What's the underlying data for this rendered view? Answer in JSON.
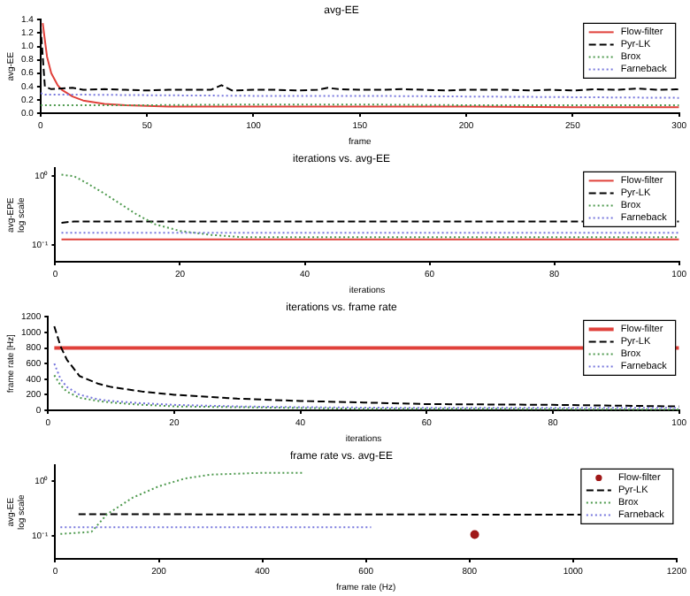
{
  "chart_data": [
    {
      "type": "line",
      "title": "avg-EE",
      "xlabel": "frame",
      "ylabel": "avg-EE",
      "xlim": [
        0,
        300
      ],
      "xticks": [
        0,
        50,
        100,
        150,
        200,
        250,
        300
      ],
      "ylim": [
        0,
        1.4
      ],
      "yticks": [
        {
          "value": 0,
          "label": "0.0"
        },
        {
          "value": 0.2,
          "label": "0.2"
        },
        {
          "value": 0.4,
          "label": "0.4"
        },
        {
          "value": 0.6,
          "label": "0.6"
        },
        {
          "value": 0.8,
          "label": "0.8"
        },
        {
          "value": 1,
          "label": "1.0"
        },
        {
          "value": 1.2,
          "label": "1.2"
        },
        {
          "value": 1.4,
          "label": "1.4"
        }
      ],
      "grid": false,
      "legend": "top right",
      "series": [
        {
          "name": "Flow-filter",
          "color": "#e0403a",
          "line_style": "solid",
          "x": [
            1,
            2,
            3,
            5,
            8,
            10,
            15,
            20,
            30,
            40,
            60,
            100,
            150,
            200,
            250,
            300
          ],
          "values": [
            1.35,
            1.1,
            0.85,
            0.6,
            0.42,
            0.35,
            0.25,
            0.19,
            0.14,
            0.12,
            0.1,
            0.1,
            0.1,
            0.1,
            0.09,
            0.09
          ]
        },
        {
          "name": "Pyr-LK",
          "color": "#000000",
          "line_style": "dashed",
          "x": [
            0,
            2,
            5,
            10,
            15,
            20,
            30,
            40,
            50,
            60,
            70,
            80,
            85,
            90,
            100,
            110,
            120,
            130,
            135,
            140,
            150,
            160,
            170,
            180,
            190,
            200,
            210,
            220,
            230,
            240,
            250,
            260,
            270,
            280,
            290,
            300
          ],
          "values": [
            1.3,
            0.4,
            0.36,
            0.37,
            0.38,
            0.35,
            0.36,
            0.35,
            0.34,
            0.35,
            0.35,
            0.35,
            0.42,
            0.34,
            0.35,
            0.35,
            0.34,
            0.35,
            0.38,
            0.36,
            0.35,
            0.35,
            0.36,
            0.35,
            0.34,
            0.35,
            0.35,
            0.35,
            0.34,
            0.35,
            0.34,
            0.36,
            0.35,
            0.37,
            0.35,
            0.36
          ]
        },
        {
          "name": "Brox",
          "color": "#4f9a4f",
          "line_style": "dotted",
          "x": [
            0,
            1,
            5,
            50,
            100,
            150,
            200,
            250,
            300
          ],
          "values": [
            0.12,
            0.12,
            0.12,
            0.12,
            0.13,
            0.13,
            0.12,
            0.12,
            0.12
          ]
        },
        {
          "name": "Farneback",
          "color": "#7777dd",
          "line_style": "dotted",
          "x": [
            0,
            2,
            10,
            50,
            100,
            150,
            200,
            250,
            300
          ],
          "values": [
            0.3,
            0.28,
            0.28,
            0.27,
            0.26,
            0.26,
            0.25,
            0.24,
            0.23
          ]
        }
      ]
    },
    {
      "type": "line",
      "title": "iterations vs. avg-EE",
      "xlabel": "iterations",
      "ylabel": "avg-EPE\nlog scale",
      "log": "y",
      "xlim": [
        0,
        100
      ],
      "xticks": [
        0,
        20,
        40,
        60,
        80,
        100
      ],
      "ylim": [
        0.057,
        1.3
      ],
      "yticks": [
        {
          "value": 0.1,
          "label": "10⁻¹"
        },
        {
          "value": 1,
          "label": "10⁰"
        }
      ],
      "grid": false,
      "legend": "top right",
      "series": [
        {
          "name": "Flow-filter",
          "color": "#e0403a",
          "line_style": "solid",
          "x": [
            1,
            100
          ],
          "values": [
            0.12,
            0.12
          ]
        },
        {
          "name": "Pyr-LK",
          "color": "#000000",
          "line_style": "dashed",
          "x": [
            1,
            3,
            100
          ],
          "values": [
            0.21,
            0.22,
            0.22
          ]
        },
        {
          "name": "Brox",
          "color": "#4f9a4f",
          "line_style": "dotted",
          "x": [
            1,
            3,
            5,
            8,
            10,
            13,
            16,
            20,
            25,
            30,
            40,
            60,
            80,
            100
          ],
          "values": [
            1.05,
            1.0,
            0.8,
            0.55,
            0.42,
            0.28,
            0.2,
            0.16,
            0.14,
            0.13,
            0.13,
            0.13,
            0.13,
            0.13
          ]
        },
        {
          "name": "Farneback",
          "color": "#7777dd",
          "line_style": "dotted",
          "x": [
            1,
            100
          ],
          "values": [
            0.15,
            0.15
          ]
        }
      ]
    },
    {
      "type": "line",
      "title": "iterations vs. frame rate",
      "xlabel": "iterations",
      "ylabel": "frame rate [Hz]",
      "xlim": [
        0,
        100
      ],
      "xticks": [
        0,
        20,
        40,
        60,
        80,
        100
      ],
      "ylim": [
        0,
        1200
      ],
      "yticks": [
        0,
        200,
        400,
        600,
        800,
        1000,
        1200
      ],
      "grid": false,
      "legend": "top right",
      "series": [
        {
          "name": "Flow-filter",
          "color": "#e0403a",
          "line_style": "solid",
          "x": [
            1,
            100
          ],
          "values": [
            800,
            800
          ]
        },
        {
          "name": "Pyr-LK",
          "color": "#000000",
          "line_style": "dashed",
          "x": [
            1,
            2,
            3,
            5,
            8,
            10,
            15,
            20,
            30,
            40,
            50,
            60,
            80,
            100
          ],
          "values": [
            1080,
            820,
            650,
            440,
            340,
            300,
            240,
            200,
            150,
            120,
            100,
            80,
            70,
            50
          ]
        },
        {
          "name": "Brox",
          "color": "#4f9a4f",
          "line_style": "dotted",
          "x": [
            1,
            2,
            3,
            5,
            8,
            10,
            15,
            20,
            30,
            50,
            70,
            100
          ],
          "values": [
            450,
            320,
            240,
            160,
            120,
            100,
            70,
            50,
            40,
            20,
            20,
            10
          ]
        },
        {
          "name": "Farneback",
          "color": "#7777dd",
          "line_style": "dotted",
          "x": [
            1,
            2,
            3,
            5,
            8,
            10,
            15,
            20,
            30,
            40,
            60,
            100
          ],
          "values": [
            600,
            400,
            300,
            200,
            140,
            120,
            90,
            70,
            50,
            40,
            30,
            30
          ]
        }
      ]
    },
    {
      "type": "line",
      "title": "frame rate vs. avg-EE",
      "xlabel": "frame rate (Hz)",
      "ylabel": "avg-EE\nlog scale",
      "log": "y",
      "xlim": [
        0,
        1200
      ],
      "xticks": [
        0,
        200,
        400,
        600,
        800,
        1000,
        1200
      ],
      "ylim": [
        0.039,
        1.9
      ],
      "yticks": [
        {
          "value": 0.1,
          "label": "10⁻¹"
        },
        {
          "value": 1,
          "label": "10⁰"
        }
      ],
      "grid": false,
      "legend": "top right",
      "series": [
        {
          "name": "Flow-filter",
          "type": "scatter",
          "marker": "circle",
          "color": "#a01818",
          "x": [
            810
          ],
          "values": [
            0.107
          ]
        },
        {
          "name": "Pyr-LK",
          "color": "#000000",
          "line_style": "dashed",
          "x": [
            45,
            1130
          ],
          "values": [
            0.25,
            0.245
          ]
        },
        {
          "name": "Brox",
          "color": "#4f9a4f",
          "line_style": "dotted",
          "x": [
            10,
            70,
            100,
            150,
            200,
            250,
            300,
            400,
            480
          ],
          "values": [
            0.11,
            0.12,
            0.25,
            0.5,
            0.8,
            1.1,
            1.3,
            1.4,
            1.4
          ]
        },
        {
          "name": "Farneback",
          "color": "#7777dd",
          "line_style": "dotted",
          "x": [
            10,
            610
          ],
          "values": [
            0.145,
            0.145
          ]
        }
      ]
    }
  ]
}
